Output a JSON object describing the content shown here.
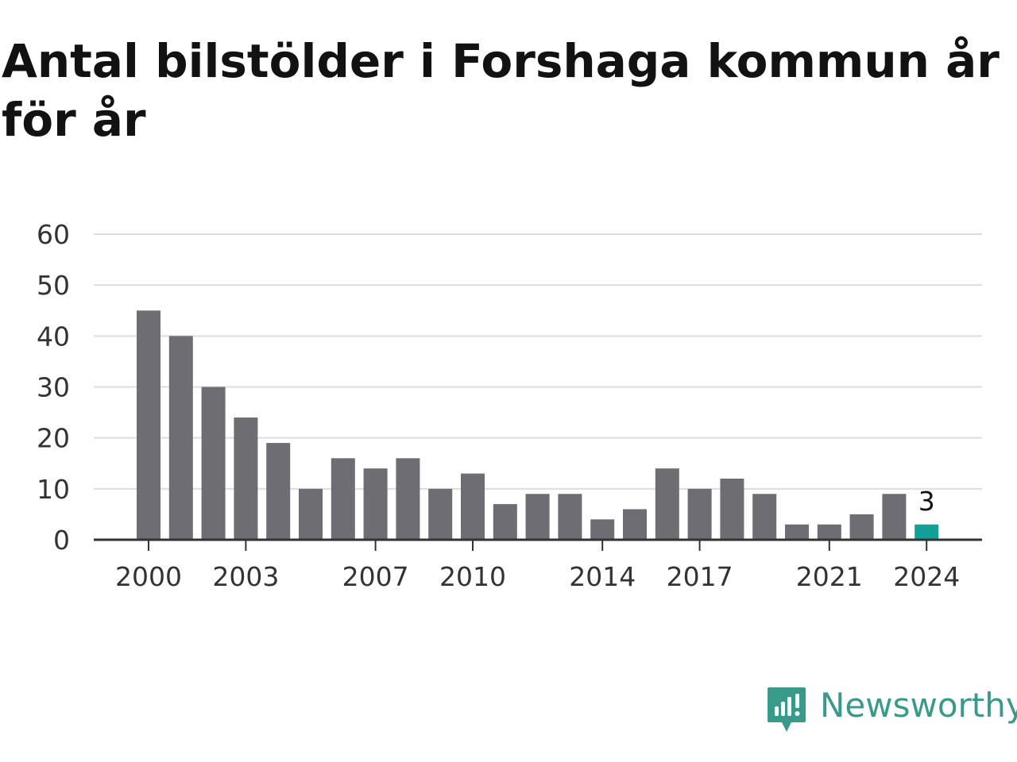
{
  "title": "Antal bilstölder i Forshaga kommun år för år",
  "brand": {
    "name": "Newsworthy",
    "logo_icon": "newsworthy-logo-icon",
    "color": "#3a9a8a"
  },
  "colors": {
    "bar": "#6e6d73",
    "highlight": "#12a096",
    "grid": "#dddddd",
    "axis": "#333333"
  },
  "chart_data": {
    "type": "bar",
    "title": "Antal bilstölder i Forshaga kommun år för år",
    "categories": [
      2000,
      2001,
      2002,
      2003,
      2004,
      2005,
      2006,
      2007,
      2008,
      2009,
      2010,
      2011,
      2012,
      2013,
      2014,
      2015,
      2016,
      2017,
      2018,
      2019,
      2020,
      2021,
      2022,
      2023,
      2024
    ],
    "values": [
      45,
      40,
      30,
      24,
      19,
      10,
      16,
      14,
      16,
      10,
      13,
      7,
      9,
      9,
      4,
      6,
      14,
      10,
      12,
      9,
      3,
      3,
      5,
      9,
      3
    ],
    "highlight_category": 2024,
    "annotations": [
      {
        "category": 2024,
        "text": "3"
      }
    ],
    "x_tick_labels": [
      "2000",
      "2003",
      "2007",
      "2010",
      "2014",
      "2017",
      "2021",
      "2024"
    ],
    "y_ticks": [
      0,
      10,
      20,
      30,
      40,
      50,
      60
    ],
    "ylim": [
      0,
      60
    ],
    "xlabel": "",
    "ylabel": "",
    "grid": true,
    "legend": "none"
  }
}
